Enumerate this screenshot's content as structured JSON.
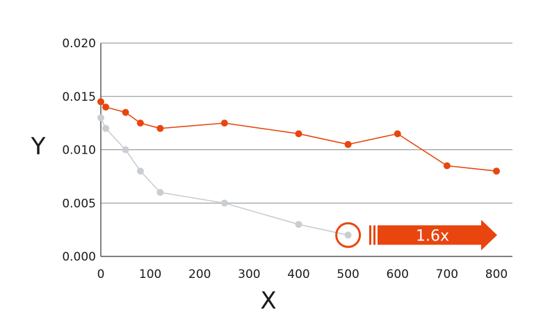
{
  "chart_data": {
    "type": "line",
    "title": "",
    "xlabel": "X",
    "ylabel": "Y",
    "xlim": [
      0,
      800
    ],
    "ylim": [
      0,
      0.02
    ],
    "x_ticks": [
      "0",
      "100",
      "200",
      "300",
      "400",
      "500",
      "600",
      "700",
      "800"
    ],
    "y_ticks": [
      "0.000",
      "0.005",
      "0.010",
      "0.015",
      "0.020"
    ],
    "grid": true,
    "series": [
      {
        "color": "#e8450f",
        "points": [
          [
            0,
            0.0145
          ],
          [
            10,
            0.014
          ],
          [
            50,
            0.0135
          ],
          [
            80,
            0.0125
          ],
          [
            120,
            0.012
          ],
          [
            250,
            0.0125
          ],
          [
            400,
            0.0115
          ],
          [
            500,
            0.0105
          ],
          [
            600,
            0.0115
          ],
          [
            700,
            0.0085
          ],
          [
            800,
            0.008
          ]
        ]
      },
      {
        "color": "#c8ced3",
        "points": [
          [
            0,
            0.013
          ],
          [
            10,
            0.012
          ],
          [
            50,
            0.01
          ],
          [
            80,
            0.008
          ],
          [
            120,
            0.006
          ],
          [
            250,
            0.005
          ],
          [
            400,
            0.003
          ],
          [
            500,
            0.002
          ]
        ]
      }
    ],
    "annotation": {
      "text": "1.6x",
      "target": [
        500,
        0.002
      ],
      "color": "#e8450f"
    }
  }
}
